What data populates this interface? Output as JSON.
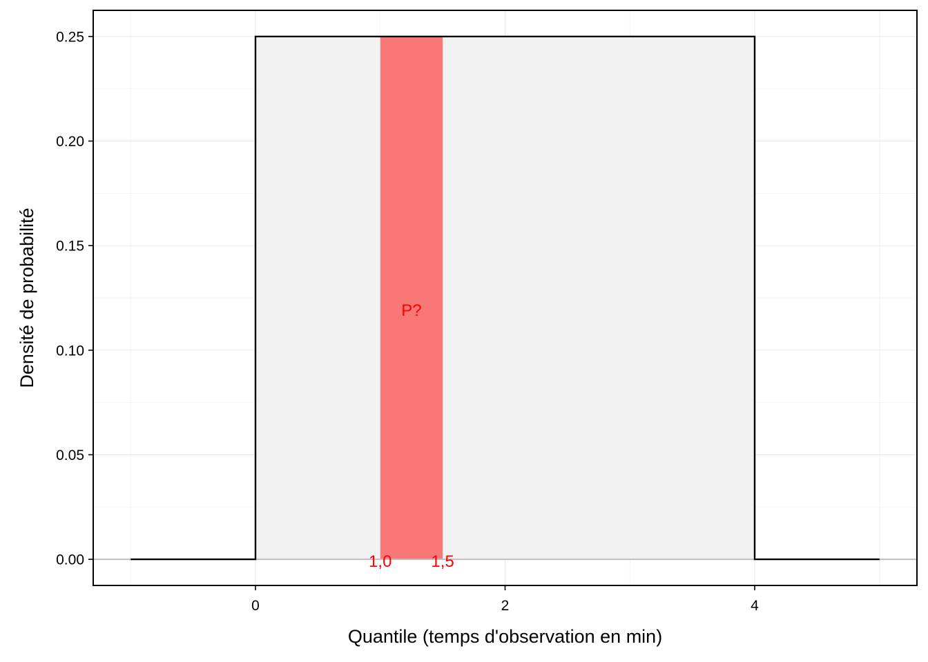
{
  "chart_data": {
    "type": "line",
    "title": "",
    "xlabel": "Quantile (temps d'observation en min)",
    "ylabel": "Densité de probabilité",
    "xlim": [
      -1.3,
      5.3
    ],
    "ylim": [
      -0.0125,
      0.2625
    ],
    "x_ticks": [
      0,
      2,
      4
    ],
    "x_tick_labels": [
      "0",
      "2",
      "4"
    ],
    "y_ticks": [
      0.0,
      0.05,
      0.1,
      0.15,
      0.2,
      0.25
    ],
    "y_tick_labels": [
      "0.00",
      "0.05",
      "0.10",
      "0.15",
      "0.20",
      "0.25"
    ],
    "grid": true,
    "legend": "none",
    "series": [
      {
        "x": [
          -1,
          0,
          0,
          4,
          4,
          5
        ],
        "y": [
          0,
          0,
          0.25,
          0.25,
          0,
          0
        ]
      }
    ],
    "density_fill": {
      "from": 0,
      "to": 4,
      "value": 0.25,
      "color": "#f2f2f2"
    },
    "highlight": {
      "from": 1.0,
      "to": 1.5,
      "value": 0.25,
      "color": "#f87878"
    },
    "annotations": [
      {
        "text": "P?",
        "x": 1.25,
        "y": 0.12,
        "color": "#ff0000"
      },
      {
        "text": "1,0",
        "x": 1.0,
        "y": 0.0,
        "color": "#ff0000"
      },
      {
        "text": "1,5",
        "x": 1.5,
        "y": 0.0,
        "color": "#ff0000"
      }
    ],
    "colors": {
      "line": "#000000",
      "grid": "#ebebeb",
      "baseline": "#bebebe",
      "panel_border": "#000000"
    }
  }
}
